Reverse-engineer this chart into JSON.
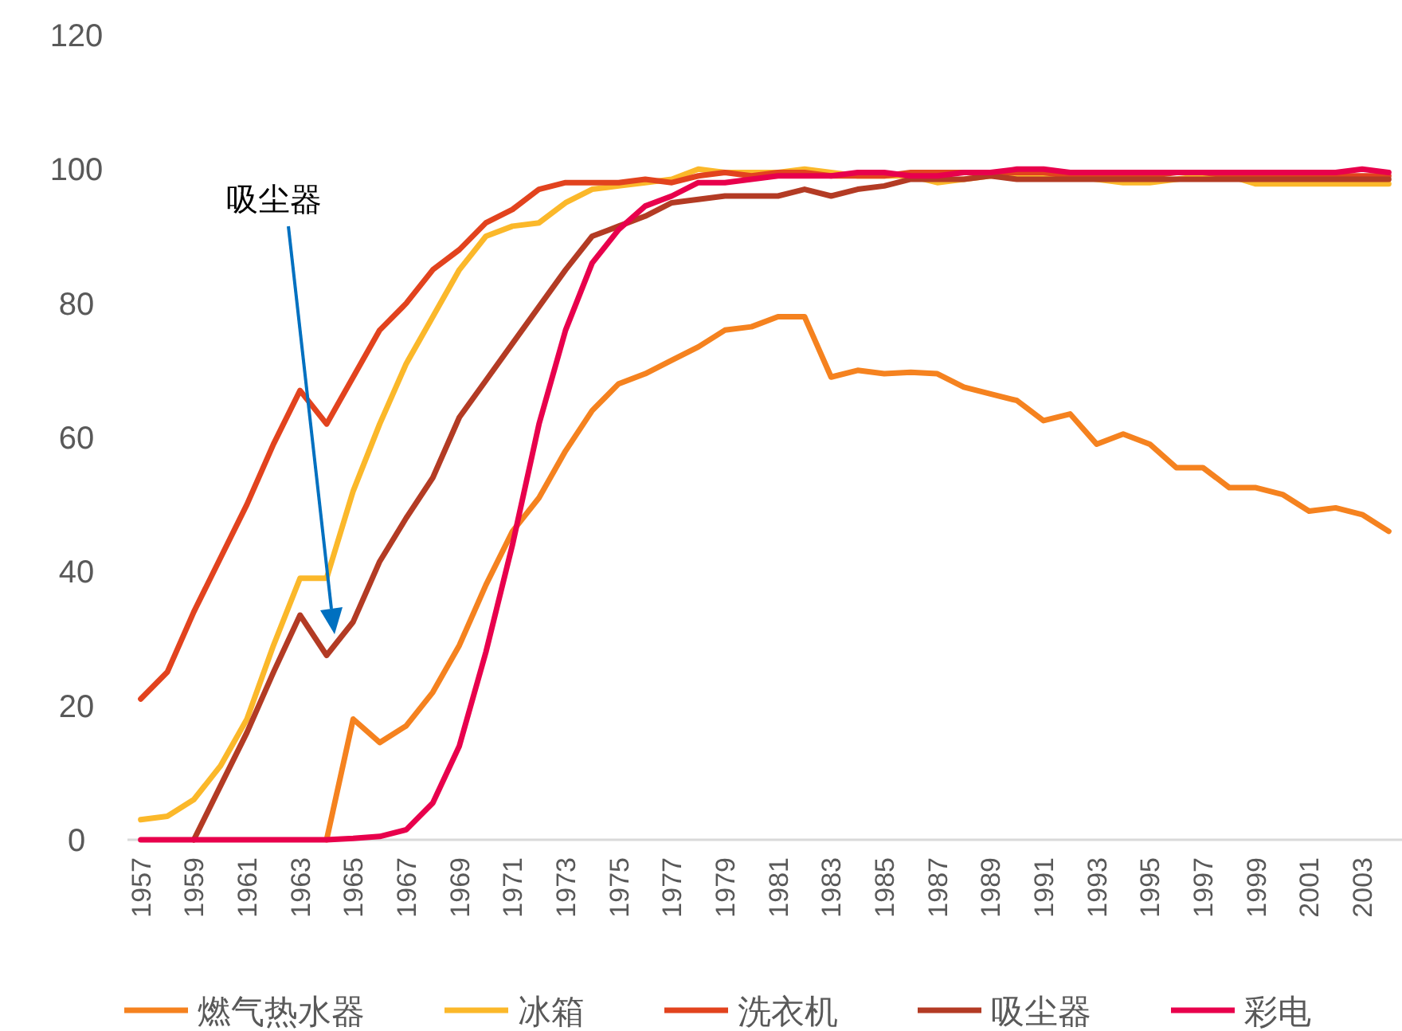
{
  "chart_data": {
    "type": "line",
    "categories": [
      "1957",
      null,
      "1959",
      null,
      "1961",
      null,
      "1963",
      null,
      "1965",
      null,
      "1967",
      null,
      "1969",
      null,
      "1971",
      null,
      "1973",
      null,
      "1975",
      null,
      "1977",
      null,
      "1979",
      null,
      "1981",
      null,
      "1983",
      null,
      "1985",
      null,
      "1987",
      null,
      "1989",
      null,
      "1991",
      null,
      "1993",
      null,
      "1995",
      null,
      "1997",
      null,
      "1999",
      null,
      "2001",
      null,
      "2003",
      null
    ],
    "series": [
      {
        "name": "燃气热水器",
        "color": "#f5821f",
        "values": [
          null,
          null,
          null,
          null,
          null,
          null,
          null,
          0,
          18,
          14.5,
          17,
          22,
          29,
          38,
          46,
          51,
          58,
          64,
          68,
          69.5,
          71.5,
          73.5,
          76,
          76.5,
          78,
          78,
          69,
          70,
          69.5,
          69.7,
          69.5,
          67.5,
          66.5,
          65.5,
          62.5,
          63.5,
          59,
          60.5,
          59,
          55.5,
          55.5,
          52.5,
          52.5,
          51.5,
          49,
          49.5,
          48.5,
          46
        ]
      },
      {
        "name": "冰箱",
        "color": "#fbb82a",
        "values": [
          3,
          3.5,
          6,
          11,
          18,
          29,
          39,
          39,
          52,
          62,
          71,
          78,
          85,
          90,
          91.5,
          92,
          95,
          97,
          97.5,
          98,
          98.5,
          100,
          99.5,
          99.5,
          99.5,
          100,
          99.5,
          99,
          99,
          99,
          98,
          98.5,
          99,
          99,
          99,
          99,
          98.5,
          98,
          98,
          98.5,
          99,
          99,
          97.8,
          97.8,
          97.8,
          97.8,
          97.8,
          97.8
        ]
      },
      {
        "name": "洗衣机",
        "color": "#e2431e",
        "values": [
          21,
          25,
          34,
          42,
          50,
          59,
          67,
          62,
          69,
          76,
          80,
          85,
          88,
          92,
          94,
          97,
          98,
          98,
          98,
          98.5,
          98,
          99,
          99.5,
          99,
          99.5,
          99.5,
          99,
          99,
          99,
          99.5,
          99.5,
          99.5,
          99.5,
          99.5,
          99.5,
          99,
          99,
          99,
          99,
          99.5,
          99.5,
          99,
          99,
          99,
          99,
          99,
          99,
          99
        ]
      },
      {
        "name": "吸尘器",
        "color": "#b33b24",
        "values": [
          null,
          null,
          0,
          8,
          16,
          25,
          33.5,
          27.5,
          32.5,
          41.5,
          48,
          54,
          63,
          68.5,
          74,
          79.5,
          85,
          90,
          91.5,
          93,
          95,
          95.5,
          96,
          96,
          96,
          97,
          96,
          97,
          97.5,
          98.5,
          98.5,
          98.5,
          99,
          98.5,
          98.5,
          98.5,
          98.5,
          98.5,
          98.5,
          98.5,
          98.5,
          98.5,
          98.5,
          98.5,
          98.5,
          98.5,
          98.5,
          98.5
        ]
      },
      {
        "name": "彩电",
        "color": "#e8004c",
        "values": [
          0,
          0,
          0,
          0,
          0,
          0,
          0,
          0,
          0.2,
          0.5,
          1.5,
          5.5,
          14,
          28,
          44,
          62,
          76,
          86,
          91,
          94.5,
          96,
          98,
          98,
          98.5,
          99,
          99,
          99,
          99.5,
          99.5,
          99,
          99,
          99.5,
          99.5,
          100,
          100,
          99.5,
          99.5,
          99.5,
          99.5,
          99.5,
          99.5,
          99.5,
          99.5,
          99.5,
          99.5,
          99.5,
          100,
          99.5
        ]
      }
    ],
    "ylim": [
      0,
      120
    ],
    "yticks": [
      0,
      20,
      40,
      60,
      80,
      100,
      120
    ],
    "grid": false,
    "legend": "bottom",
    "marker": "none",
    "line_style": "solid",
    "annotations": [
      "吸尘器"
    ]
  }
}
